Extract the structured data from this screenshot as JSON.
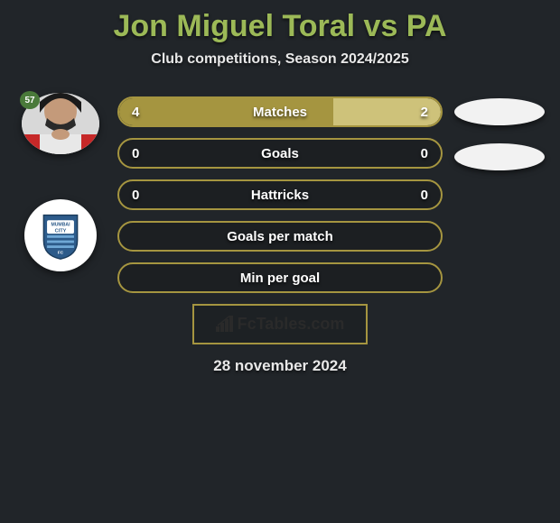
{
  "title": "Jon Miguel Toral vs PA",
  "title_color": "#9cb957",
  "subtitle": "Club competitions, Season 2024/2025",
  "background_color": "#212529",
  "text_color": "#e8e8e8",
  "player1": {
    "number": "57",
    "number_bg": "#4a7a3a"
  },
  "club_logo": {
    "text_top": "MUMBAI",
    "text_mid": "CITY",
    "text_bottom": "FC",
    "shield_color": "#2d5b8a",
    "stripe_color": "#6fa8d6"
  },
  "bars": [
    {
      "label": "Matches",
      "left_val": "4",
      "right_val": "2",
      "left_pct": 66.7,
      "right_pct": 33.3,
      "left_color": "#a59540",
      "right_color": "#cec27a",
      "border_color": "#a59540",
      "show_vals": true
    },
    {
      "label": "Goals",
      "left_val": "0",
      "right_val": "0",
      "left_pct": 0,
      "right_pct": 0,
      "left_color": "#a59540",
      "right_color": "#cec27a",
      "border_color": "#a59540",
      "show_vals": true
    },
    {
      "label": "Hattricks",
      "left_val": "0",
      "right_val": "0",
      "left_pct": 0,
      "right_pct": 0,
      "left_color": "#a59540",
      "right_color": "#cec27a",
      "border_color": "#a59540",
      "show_vals": true
    },
    {
      "label": "Goals per match",
      "left_val": "",
      "right_val": "",
      "left_pct": 0,
      "right_pct": 0,
      "left_color": "#a59540",
      "right_color": "#cec27a",
      "border_color": "#a59540",
      "show_vals": false
    },
    {
      "label": "Min per goal",
      "left_val": "",
      "right_val": "",
      "left_pct": 0,
      "right_pct": 0,
      "left_color": "#a59540",
      "right_color": "#cec27a",
      "border_color": "#a59540",
      "show_vals": false
    }
  ],
  "right_ellipses_count": 2,
  "right_ellipse_color": "#f2f2f2",
  "footer": {
    "brand": "FcTables.com",
    "brand_border": "#a59540",
    "date": "28 november 2024"
  }
}
